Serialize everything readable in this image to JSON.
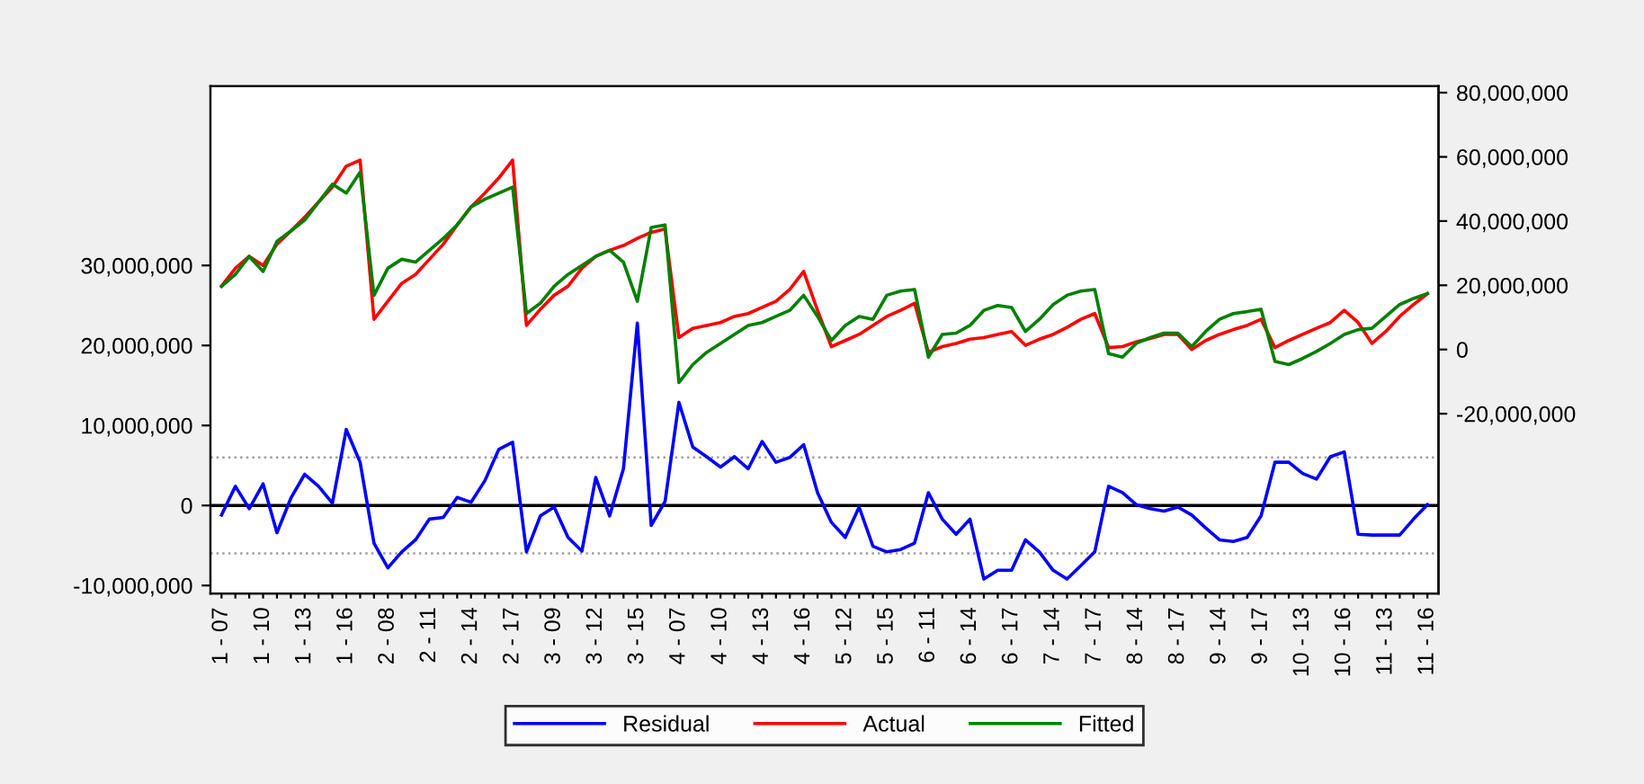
{
  "chart_data": {
    "type": "line",
    "categories": [
      "1 - 07",
      null,
      null,
      "1 - 10",
      null,
      null,
      "1 - 13",
      null,
      null,
      "1 - 16",
      null,
      null,
      "2 - 08",
      null,
      null,
      "2 - 11",
      null,
      null,
      "2 - 14",
      null,
      null,
      "2 - 17",
      null,
      null,
      "3 - 09",
      null,
      null,
      "3 - 12",
      null,
      null,
      "3 - 15",
      null,
      null,
      "4 - 07",
      null,
      null,
      "4 - 10",
      null,
      null,
      "4 - 13",
      null,
      null,
      "4 - 16",
      null,
      null,
      "5 - 12",
      null,
      null,
      "5 - 15",
      null,
      null,
      "6 - 11",
      null,
      null,
      "6 - 14",
      null,
      null,
      "6 - 17",
      null,
      null,
      "7 - 14",
      null,
      null,
      "7 - 17",
      null,
      null,
      "8 - 14",
      null,
      null,
      "8 - 17",
      null,
      null,
      "9 - 14",
      null,
      null,
      "9 - 17",
      null,
      null,
      "10 - 13",
      null,
      null,
      "10 - 16",
      null,
      null,
      "11 - 13",
      null,
      null,
      "11 - 16"
    ],
    "series": [
      {
        "name": "Residual",
        "color": "#0000ff",
        "axis": "y",
        "values": [
          -1200000,
          2400000,
          -400000,
          2700000,
          -3400000,
          900000,
          3900000,
          2400000,
          300000,
          9500000,
          5400000,
          -4700000,
          -7800000,
          -5800000,
          -4300000,
          -1700000,
          -1500000,
          1000000,
          400000,
          3100000,
          7000000,
          7900000,
          -5800000,
          -1300000,
          -200000,
          -4000000,
          -5700000,
          3500000,
          -1300000,
          4600000,
          22800000,
          -2500000,
          500000,
          12900000,
          7300000,
          6100000,
          4800000,
          6100000,
          4600000,
          8000000,
          5400000,
          6000000,
          7600000,
          1600000,
          -2100000,
          -4000000,
          -200000,
          -5100000,
          -5800000,
          -5500000,
          -4700000,
          1600000,
          -1700000,
          -3600000,
          -1700000,
          -9200000,
          -8100000,
          -8100000,
          -4300000,
          -5800000,
          -8100000,
          -9200000,
          -7500000,
          -5800000,
          2400000,
          1600000,
          100000,
          -400000,
          -700000,
          -200000,
          -1200000,
          -2800000,
          -4300000,
          -4500000,
          -4000000,
          -1300000,
          5400000,
          5400000,
          4000000,
          3300000,
          6100000,
          6700000,
          -3600000,
          -3700000,
          -3700000,
          -3700000,
          -1700000,
          100000
        ]
      },
      {
        "name": "Actual",
        "color": "#ff0000",
        "axis": "y2",
        "values": [
          19700000,
          25300000,
          29000000,
          26200000,
          32800000,
          36900000,
          41200000,
          45900000,
          50600000,
          57100000,
          59000000,
          9400000,
          15000000,
          20600000,
          23400000,
          28100000,
          32800000,
          38800000,
          44400000,
          48700000,
          53400000,
          59000000,
          7500000,
          12500000,
          16900000,
          19700000,
          25300000,
          29000000,
          30900000,
          32400000,
          34600000,
          36500000,
          37500000,
          3700000,
          6600000,
          7500000,
          8400000,
          10300000,
          11200000,
          13100000,
          15000000,
          18700000,
          24300000,
          12200000,
          900000,
          2800000,
          4700000,
          7500000,
          10300000,
          12200000,
          14400000,
          -900000,
          900000,
          1900000,
          3200000,
          3700000,
          4700000,
          5600000,
          1300000,
          3200000,
          4700000,
          6900000,
          9400000,
          11200000,
          600000,
          900000,
          2400000,
          3400000,
          4700000,
          4700000,
          0,
          2800000,
          4700000,
          6200000,
          7500000,
          9400000,
          600000,
          2800000,
          4700000,
          6600000,
          8400000,
          12200000,
          8400000,
          1900000,
          5600000,
          10300000,
          14000000,
          17400000
        ]
      },
      {
        "name": "Fitted",
        "color": "#008000",
        "axis": "y2",
        "values": [
          19700000,
          23400000,
          29000000,
          24300000,
          33700000,
          36900000,
          40300000,
          45900000,
          51500000,
          48700000,
          55200000,
          16900000,
          25300000,
          28100000,
          27200000,
          30900000,
          34600000,
          38800000,
          44400000,
          46800000,
          48700000,
          50600000,
          11200000,
          14400000,
          19700000,
          23400000,
          26200000,
          29000000,
          30900000,
          27200000,
          15000000,
          38000000,
          38800000,
          -10300000,
          -4700000,
          -900000,
          1900000,
          4700000,
          7500000,
          8400000,
          10300000,
          12200000,
          16900000,
          10300000,
          2800000,
          7500000,
          10300000,
          9400000,
          16900000,
          18200000,
          18700000,
          -2400000,
          4700000,
          5100000,
          7500000,
          12200000,
          13700000,
          13100000,
          5600000,
          9400000,
          14000000,
          16900000,
          18200000,
          18700000,
          -1300000,
          -2400000,
          1900000,
          3700000,
          5100000,
          5100000,
          900000,
          5600000,
          9400000,
          11200000,
          11800000,
          12500000,
          -3700000,
          -4700000,
          -2800000,
          -600000,
          1900000,
          4700000,
          6200000,
          6600000,
          10300000,
          14000000,
          15900000,
          17400000
        ]
      }
    ],
    "ylim": [
      -11000000,
      52400000
    ],
    "yticks": [
      {
        "value": -10000000,
        "label": "-10,000,000"
      },
      0,
      {
        "value": 10000000,
        "label": "10,000,000"
      },
      {
        "value": 20000000,
        "label": "20,000,000"
      },
      {
        "value": 30000000,
        "label": "30,000,000"
      }
    ],
    "y2lim": [
      -76000000,
      82000000
    ],
    "y2ticks": [
      {
        "value": -20000000,
        "label": "-20,000,000"
      },
      0,
      {
        "value": 20000000,
        "label": "20,000,000"
      },
      {
        "value": 40000000,
        "label": "40,000,000"
      },
      {
        "value": 60000000,
        "label": "60,000,000"
      },
      {
        "value": 80000000,
        "label": "80,000,000"
      }
    ],
    "ref_lines": [
      {
        "axis": "y",
        "value": 0,
        "color": "#000000",
        "line_style": "solid"
      },
      {
        "axis": "y",
        "value": 6000000,
        "color": "#a0a0a0",
        "line_style": "dotted"
      },
      {
        "axis": "y",
        "value": -6000000,
        "color": "#a0a0a0",
        "line_style": "dotted"
      }
    ],
    "legend": "bottom"
  }
}
